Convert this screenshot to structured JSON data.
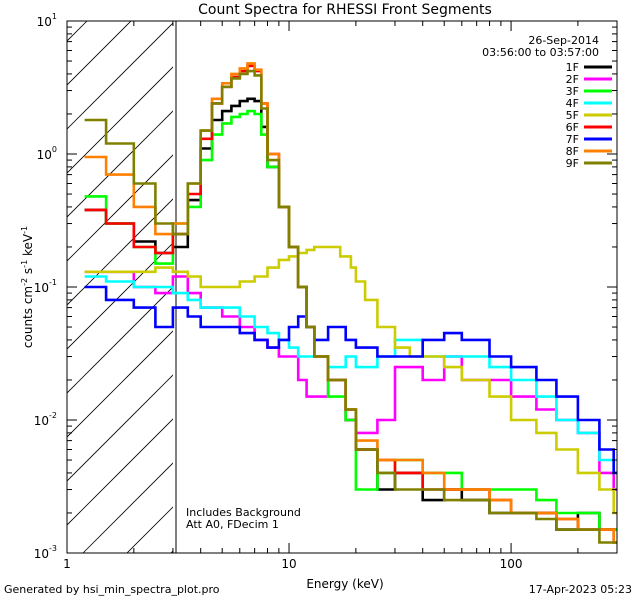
{
  "chart_data": {
    "type": "line",
    "title": "Count Spectra for RHESSI Front Segments",
    "date": "26-Sep-2014",
    "time_range": "03:56:00 to 03:57:00",
    "xlabel": "Energy (keV)",
    "ylabel": "counts cm-2 s-1 keV-1",
    "xscale": "log",
    "yscale": "log",
    "xlim": [
      1,
      300
    ],
    "ylim": [
      0.001,
      10
    ],
    "x_ticks": [
      1,
      10,
      100
    ],
    "x_tick_labels": [
      "1",
      "10",
      "100"
    ],
    "y_ticks": [
      0.001,
      0.01,
      0.1,
      1,
      10
    ],
    "y_tick_labels": [
      "10",
      "10",
      "10",
      "10",
      "10"
    ],
    "y_tick_exponents": [
      "-3",
      "-2",
      "-1",
      "0",
      "1"
    ],
    "hatched_region_keV": [
      1,
      3
    ],
    "annotations": [
      "Includes Background",
      "Att A0, FDecim 1"
    ],
    "legend_position": "top-right",
    "series": [
      {
        "name": "1F",
        "color": "#000000",
        "points": [
          [
            1.2,
            0.38
          ],
          [
            1.5,
            0.3
          ],
          [
            2.0,
            0.22
          ],
          [
            2.5,
            0.18
          ],
          [
            3.0,
            0.2
          ],
          [
            3.5,
            0.45
          ],
          [
            4.0,
            1.1
          ],
          [
            4.5,
            1.8
          ],
          [
            5.0,
            2.1
          ],
          [
            5.5,
            2.3
          ],
          [
            6.0,
            2.5
          ],
          [
            6.5,
            2.6
          ],
          [
            7.0,
            2.5
          ],
          [
            7.5,
            1.6
          ],
          [
            8.0,
            0.8
          ],
          [
            9.0,
            0.4
          ],
          [
            10,
            0.2
          ],
          [
            11,
            0.1
          ],
          [
            12,
            0.05
          ],
          [
            13,
            0.03
          ],
          [
            15,
            0.02
          ],
          [
            18,
            0.01
          ],
          [
            20,
            0.006
          ],
          [
            25,
            0.003
          ],
          [
            30,
            0.004
          ],
          [
            40,
            0.0025
          ],
          [
            50,
            0.003
          ],
          [
            60,
            0.0025
          ],
          [
            80,
            0.002
          ],
          [
            100,
            0.002
          ],
          [
            130,
            0.002
          ],
          [
            160,
            0.0015
          ],
          [
            200,
            0.002
          ],
          [
            250,
            0.0015
          ],
          [
            290,
            0.0015
          ]
        ]
      },
      {
        "name": "2F",
        "color": "#ff00ff",
        "points": [
          [
            1.2,
            0.13
          ],
          [
            1.5,
            0.13
          ],
          [
            2.0,
            0.1
          ],
          [
            2.5,
            0.09
          ],
          [
            3.0,
            0.12
          ],
          [
            3.5,
            0.09
          ],
          [
            4.0,
            0.07
          ],
          [
            5.0,
            0.06
          ],
          [
            6.0,
            0.05
          ],
          [
            7.0,
            0.04
          ],
          [
            8.0,
            0.035
          ],
          [
            9.0,
            0.03
          ],
          [
            10,
            0.03
          ],
          [
            11,
            0.02
          ],
          [
            12,
            0.015
          ],
          [
            15,
            0.02
          ],
          [
            18,
            0.01
          ],
          [
            20,
            0.008
          ],
          [
            25,
            0.01
          ],
          [
            30,
            0.025
          ],
          [
            40,
            0.02
          ],
          [
            50,
            0.03
          ],
          [
            60,
            0.02
          ],
          [
            80,
            0.02
          ],
          [
            100,
            0.015
          ],
          [
            130,
            0.012
          ],
          [
            160,
            0.01
          ],
          [
            200,
            0.008
          ],
          [
            250,
            0.004
          ],
          [
            290,
            0.003
          ]
        ]
      },
      {
        "name": "3F",
        "color": "#00ff00",
        "points": [
          [
            1.2,
            0.48
          ],
          [
            1.5,
            0.3
          ],
          [
            2.0,
            0.2
          ],
          [
            2.5,
            0.15
          ],
          [
            3.0,
            0.3
          ],
          [
            3.5,
            0.4
          ],
          [
            4.0,
            0.9
          ],
          [
            4.5,
            1.4
          ],
          [
            5.0,
            1.7
          ],
          [
            5.5,
            1.9
          ],
          [
            6.0,
            2.0
          ],
          [
            6.5,
            2.1
          ],
          [
            7.0,
            2.0
          ],
          [
            7.5,
            1.4
          ],
          [
            8.0,
            0.8
          ],
          [
            9.0,
            0.4
          ],
          [
            10,
            0.2
          ],
          [
            11,
            0.1
          ],
          [
            12,
            0.05
          ],
          [
            13,
            0.03
          ],
          [
            15,
            0.015
          ],
          [
            18,
            0.01
          ],
          [
            20,
            0.003
          ],
          [
            25,
            0.004
          ],
          [
            30,
            0.005
          ],
          [
            40,
            0.004
          ],
          [
            50,
            0.004
          ],
          [
            60,
            0.003
          ],
          [
            80,
            0.003
          ],
          [
            100,
            0.003
          ],
          [
            130,
            0.0025
          ],
          [
            160,
            0.002
          ],
          [
            200,
            0.002
          ],
          [
            250,
            0.0015
          ],
          [
            290,
            0.0015
          ]
        ]
      },
      {
        "name": "4F",
        "color": "#00ffff",
        "points": [
          [
            1.2,
            0.12
          ],
          [
            1.5,
            0.11
          ],
          [
            2.0,
            0.1
          ],
          [
            2.5,
            0.1
          ],
          [
            3.0,
            0.09
          ],
          [
            3.5,
            0.08
          ],
          [
            4.0,
            0.07
          ],
          [
            5.0,
            0.07
          ],
          [
            6.0,
            0.06
          ],
          [
            7.0,
            0.05
          ],
          [
            8.0,
            0.045
          ],
          [
            9.0,
            0.04
          ],
          [
            10,
            0.035
          ],
          [
            11,
            0.03
          ],
          [
            12,
            0.03
          ],
          [
            15,
            0.025
          ],
          [
            18,
            0.03
          ],
          [
            20,
            0.025
          ],
          [
            25,
            0.03
          ],
          [
            30,
            0.04
          ],
          [
            40,
            0.03
          ],
          [
            50,
            0.03
          ],
          [
            60,
            0.03
          ],
          [
            80,
            0.025
          ],
          [
            100,
            0.02
          ],
          [
            130,
            0.015
          ],
          [
            160,
            0.01
          ],
          [
            200,
            0.008
          ],
          [
            250,
            0.005
          ],
          [
            290,
            0.004
          ]
        ]
      },
      {
        "name": "5F",
        "color": "#cccc00",
        "points": [
          [
            1.2,
            0.13
          ],
          [
            1.5,
            0.13
          ],
          [
            2.0,
            0.13
          ],
          [
            2.5,
            0.14
          ],
          [
            3.0,
            0.13
          ],
          [
            3.5,
            0.12
          ],
          [
            4.0,
            0.1
          ],
          [
            5.0,
            0.1
          ],
          [
            6.0,
            0.11
          ],
          [
            7.0,
            0.12
          ],
          [
            8.0,
            0.14
          ],
          [
            9.0,
            0.16
          ],
          [
            10,
            0.17
          ],
          [
            11,
            0.18
          ],
          [
            12,
            0.19
          ],
          [
            13,
            0.2
          ],
          [
            15,
            0.2
          ],
          [
            17,
            0.17
          ],
          [
            19,
            0.14
          ],
          [
            20,
            0.11
          ],
          [
            22,
            0.08
          ],
          [
            25,
            0.05
          ],
          [
            30,
            0.035
          ],
          [
            35,
            0.03
          ],
          [
            40,
            0.03
          ],
          [
            50,
            0.025
          ],
          [
            60,
            0.02
          ],
          [
            80,
            0.015
          ],
          [
            100,
            0.01
          ],
          [
            130,
            0.008
          ],
          [
            160,
            0.006
          ],
          [
            200,
            0.004
          ],
          [
            250,
            0.003
          ],
          [
            290,
            0.002
          ]
        ]
      },
      {
        "name": "6F",
        "color": "#ff0000",
        "points": [
          [
            1.2,
            0.38
          ],
          [
            1.5,
            0.3
          ],
          [
            2.0,
            0.2
          ],
          [
            2.5,
            0.18
          ],
          [
            3.0,
            0.25
          ],
          [
            3.5,
            0.5
          ],
          [
            4.0,
            1.3
          ],
          [
            4.5,
            2.4
          ],
          [
            5.0,
            3.2
          ],
          [
            5.5,
            3.8
          ],
          [
            6.0,
            4.2
          ],
          [
            6.5,
            4.6
          ],
          [
            7.0,
            4.2
          ],
          [
            7.5,
            2.4
          ],
          [
            8.0,
            1.0
          ],
          [
            9.0,
            0.4
          ],
          [
            10,
            0.2
          ],
          [
            11,
            0.1
          ],
          [
            12,
            0.05
          ],
          [
            13,
            0.03
          ],
          [
            15,
            0.02
          ],
          [
            18,
            0.012
          ],
          [
            20,
            0.006
          ],
          [
            25,
            0.005
          ],
          [
            30,
            0.004
          ],
          [
            40,
            0.003
          ],
          [
            50,
            0.003
          ],
          [
            60,
            0.003
          ],
          [
            80,
            0.0025
          ],
          [
            100,
            0.002
          ],
          [
            130,
            0.002
          ],
          [
            160,
            0.0018
          ],
          [
            200,
            0.0015
          ],
          [
            250,
            0.0015
          ],
          [
            290,
            0.0012
          ]
        ]
      },
      {
        "name": "7F",
        "color": "#0000ff",
        "points": [
          [
            1.2,
            0.1
          ],
          [
            1.5,
            0.08
          ],
          [
            2.0,
            0.07
          ],
          [
            2.5,
            0.05
          ],
          [
            3.0,
            0.07
          ],
          [
            3.5,
            0.06
          ],
          [
            4.0,
            0.05
          ],
          [
            5.0,
            0.05
          ],
          [
            6.0,
            0.045
          ],
          [
            7.0,
            0.04
          ],
          [
            8.0,
            0.035
          ],
          [
            9.0,
            0.04
          ],
          [
            10,
            0.05
          ],
          [
            11,
            0.06
          ],
          [
            12,
            0.05
          ],
          [
            13,
            0.04
          ],
          [
            15,
            0.05
          ],
          [
            18,
            0.04
          ],
          [
            20,
            0.035
          ],
          [
            25,
            0.03
          ],
          [
            30,
            0.03
          ],
          [
            40,
            0.04
          ],
          [
            50,
            0.045
          ],
          [
            60,
            0.04
          ],
          [
            80,
            0.03
          ],
          [
            100,
            0.025
          ],
          [
            130,
            0.02
          ],
          [
            160,
            0.015
          ],
          [
            200,
            0.01
          ],
          [
            250,
            0.006
          ],
          [
            290,
            0.004
          ]
        ]
      },
      {
        "name": "8F",
        "color": "#ff8000",
        "points": [
          [
            1.2,
            0.95
          ],
          [
            1.5,
            0.7
          ],
          [
            2.0,
            0.4
          ],
          [
            2.5,
            0.25
          ],
          [
            3.0,
            0.3
          ],
          [
            3.5,
            0.6
          ],
          [
            4.0,
            1.5
          ],
          [
            4.5,
            2.6
          ],
          [
            5.0,
            3.4
          ],
          [
            5.5,
            4.0
          ],
          [
            6.0,
            4.4
          ],
          [
            6.5,
            4.8
          ],
          [
            7.0,
            4.3
          ],
          [
            7.5,
            2.4
          ],
          [
            8.0,
            1.0
          ],
          [
            9.0,
            0.4
          ],
          [
            10,
            0.2
          ],
          [
            11,
            0.1
          ],
          [
            12,
            0.05
          ],
          [
            13,
            0.03
          ],
          [
            15,
            0.02
          ],
          [
            18,
            0.012
          ],
          [
            20,
            0.007
          ],
          [
            25,
            0.005
          ],
          [
            30,
            0.005
          ],
          [
            40,
            0.004
          ],
          [
            50,
            0.003
          ],
          [
            60,
            0.003
          ],
          [
            80,
            0.0025
          ],
          [
            100,
            0.002
          ],
          [
            130,
            0.002
          ],
          [
            160,
            0.0018
          ],
          [
            200,
            0.0015
          ],
          [
            250,
            0.0015
          ],
          [
            290,
            0.0012
          ]
        ]
      },
      {
        "name": "9F",
        "color": "#808000",
        "points": [
          [
            1.2,
            1.8
          ],
          [
            1.5,
            1.2
          ],
          [
            2.0,
            0.6
          ],
          [
            2.5,
            0.3
          ],
          [
            3.0,
            0.25
          ],
          [
            3.5,
            0.6
          ],
          [
            4.0,
            1.5
          ],
          [
            4.5,
            2.4
          ],
          [
            5.0,
            3.2
          ],
          [
            5.5,
            3.7
          ],
          [
            6.0,
            4.0
          ],
          [
            6.5,
            4.2
          ],
          [
            7.0,
            3.9
          ],
          [
            7.5,
            2.2
          ],
          [
            8.0,
            0.9
          ],
          [
            9.0,
            0.4
          ],
          [
            10,
            0.2
          ],
          [
            11,
            0.1
          ],
          [
            12,
            0.05
          ],
          [
            13,
            0.03
          ],
          [
            15,
            0.02
          ],
          [
            18,
            0.012
          ],
          [
            20,
            0.006
          ],
          [
            25,
            0.004
          ],
          [
            30,
            0.003
          ],
          [
            40,
            0.003
          ],
          [
            50,
            0.0025
          ],
          [
            60,
            0.0025
          ],
          [
            80,
            0.002
          ],
          [
            100,
            0.002
          ],
          [
            130,
            0.0018
          ],
          [
            160,
            0.0015
          ],
          [
            200,
            0.0015
          ],
          [
            250,
            0.0012
          ],
          [
            290,
            0.0012
          ]
        ]
      }
    ]
  },
  "footer": {
    "generator": "Generated by hsi_min_spectra_plot.pro",
    "timestamp": "17-Apr-2023 05:23"
  }
}
